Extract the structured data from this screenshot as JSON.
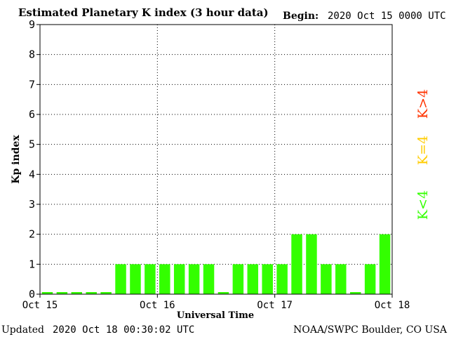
{
  "header": {
    "title": "Estimated Planetary K index (3 hour data)",
    "begin_label": "Begin:",
    "begin_value": "2020 Oct 15 0000 UTC"
  },
  "footer": {
    "updated_label": "Updated",
    "updated_value": "2020 Oct 18 00:30:02 UTC",
    "source": "NOAA/SWPC Boulder, CO USA"
  },
  "legend": {
    "storm": "K>4",
    "active": "K=4",
    "quiet": "K<4"
  },
  "colors": {
    "quiet": "#33ff00",
    "active": "#ffcc00",
    "storm": "#ff3300",
    "grid": "#000000",
    "text": "#000000"
  },
  "chart_data": {
    "type": "bar",
    "title": "Estimated Planetary K index (3 hour data)",
    "xlabel": "Universal Time",
    "ylabel": "Kp index",
    "ylim": [
      0,
      9
    ],
    "yticks": [
      "0",
      "1",
      "2",
      "3",
      "4",
      "5",
      "6",
      "7",
      "8",
      "9"
    ],
    "xticks": [
      "Oct 15",
      "Oct 16",
      "Oct 17",
      "Oct 18"
    ],
    "grid": true,
    "bin_hours": 3,
    "values": [
      0,
      0,
      0,
      0,
      0,
      1,
      1,
      1,
      1,
      1,
      1,
      1,
      0,
      1,
      1,
      1,
      1,
      2,
      2,
      1,
      1,
      0,
      1,
      2
    ]
  }
}
